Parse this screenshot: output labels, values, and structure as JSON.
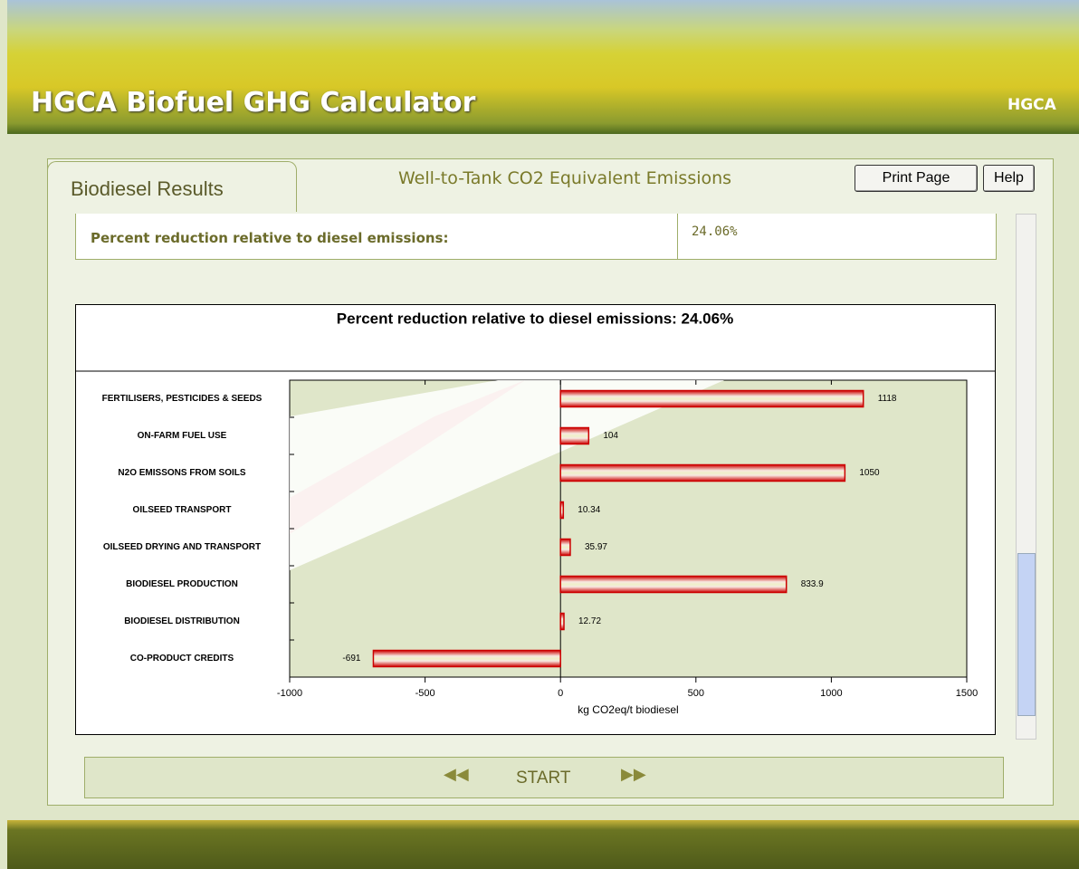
{
  "header": {
    "title": "HGCA Biofuel GHG Calculator",
    "logo": "HGCA"
  },
  "tab": "Biodiesel Results",
  "section_title": "Well-to-Tank CO2 Equivalent Emissions",
  "buttons": [
    "Print Page",
    "Help"
  ],
  "result_row": {
    "label": "Percent reduction relative to diesel emissions:",
    "value": "24.06%"
  },
  "chart_data": {
    "type": "bar",
    "orientation": "horizontal",
    "title": "Percent reduction relative to diesel emissions: 24.06%",
    "categories": [
      "FERTILISERS, PESTICIDES & SEEDS",
      "ON-FARM FUEL USE",
      "N2O EMISSONS FROM SOILS",
      "OILSEED TRANSPORT",
      "OILSEED DRYING AND TRANSPORT",
      "BIODIESEL PRODUCTION",
      "BIODIESEL DISTRIBUTION",
      "CO-PRODUCT CREDITS"
    ],
    "values": [
      1118,
      104,
      1050,
      10.34,
      35.97,
      833.9,
      12.72,
      -691
    ],
    "color": "#cc0000",
    "xlim": [
      -1000,
      1500
    ],
    "xticks": [
      -1000,
      -500,
      0,
      500,
      1000,
      1500
    ],
    "x_label": "kg CO2eq/t biodiesel"
  },
  "nav": {
    "start": "START"
  }
}
